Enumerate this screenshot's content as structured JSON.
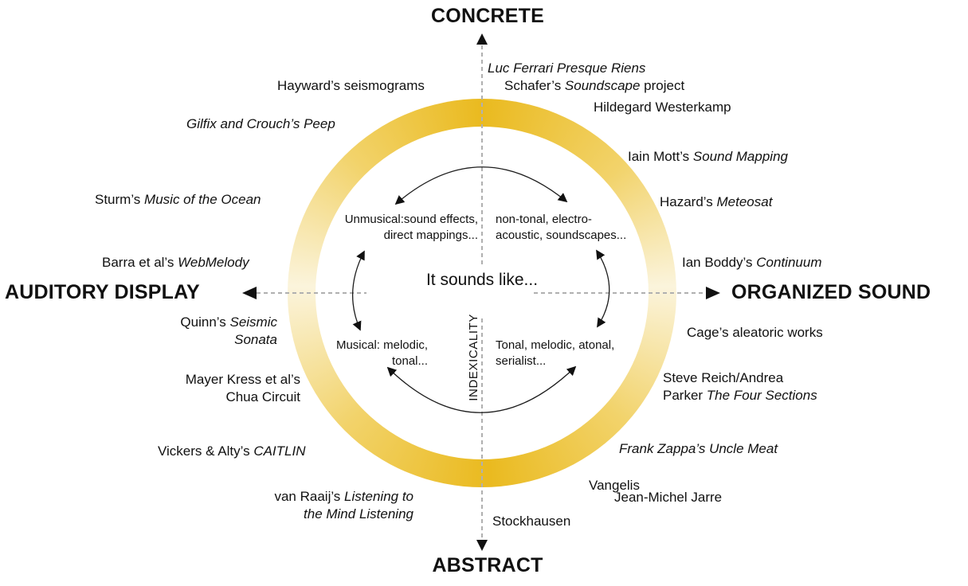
{
  "figure": {
    "axes": {
      "top": "CONCRETE",
      "bottom": "ABSTRACT",
      "left": "AUDITORY DISPLAY",
      "right": "ORGANIZED SOUND"
    },
    "center": {
      "line1": "It sounds",
      "line2": "like..."
    },
    "vertical_dimension_label": "INDEXICALITY"
  },
  "quadrants": {
    "top_left": {
      "lines": [
        [
          {
            "t": "Unmusical:sound effects,"
          }
        ],
        [
          {
            "t": "direct mappings..."
          }
        ]
      ]
    },
    "top_right": {
      "lines": [
        [
          {
            "t": "non-tonal, electro-"
          }
        ],
        [
          {
            "t": "acoustic, soundscapes..."
          }
        ]
      ]
    },
    "bottom_left": {
      "lines": [
        [
          {
            "t": "Musical: melodic,"
          }
        ],
        [
          {
            "t": "tonal..."
          }
        ]
      ]
    },
    "bottom_right": {
      "lines": [
        [
          {
            "t": "Tonal, melodic, atonal,"
          }
        ],
        [
          {
            "t": "serialist..."
          }
        ]
      ]
    }
  },
  "works": {
    "hayward": {
      "lines": [
        [
          {
            "t": "Hayward’s seismograms"
          }
        ]
      ]
    },
    "luc_ferrari": {
      "lines": [
        [
          {
            "t": "Luc Ferrari Presque Riens",
            "i": true
          }
        ]
      ]
    },
    "schafer": {
      "lines": [
        [
          {
            "t": "Schafer’s "
          },
          {
            "t": "Soundscape",
            "i": true
          },
          {
            "t": " project"
          }
        ]
      ]
    },
    "westerkamp": {
      "lines": [
        [
          {
            "t": "Hildegard Westerkamp"
          }
        ]
      ]
    },
    "gilfix": {
      "lines": [
        [
          {
            "t": "Gilfix and Crouch’s Peep",
            "i": true
          }
        ]
      ]
    },
    "mott": {
      "lines": [
        [
          {
            "t": "Iain Mott’s "
          },
          {
            "t": "Sound Mapping",
            "i": true
          }
        ]
      ]
    },
    "sturm": {
      "lines": [
        [
          {
            "t": "Sturm’s "
          },
          {
            "t": "Music of the Ocean",
            "i": true
          }
        ]
      ]
    },
    "hazard": {
      "lines": [
        [
          {
            "t": "Hazard’s "
          },
          {
            "t": "Meteosat",
            "i": true
          }
        ]
      ]
    },
    "barra": {
      "lines": [
        [
          {
            "t": "Barra et al’s "
          },
          {
            "t": "WebMelody",
            "i": true
          }
        ]
      ]
    },
    "boddy": {
      "lines": [
        [
          {
            "t": "Ian Boddy’s "
          },
          {
            "t": "Continuum",
            "i": true
          }
        ]
      ]
    },
    "quinn": {
      "lines": [
        [
          {
            "t": "Quinn’s "
          },
          {
            "t": "Seismic",
            "i": true
          }
        ],
        [
          {
            "t": "Sonata",
            "i": true
          }
        ]
      ]
    },
    "cage": {
      "lines": [
        [
          {
            "t": "Cage’s aleatoric works"
          }
        ]
      ]
    },
    "mayer_kress": {
      "lines": [
        [
          {
            "t": "Mayer Kress et al’s"
          }
        ],
        [
          {
            "t": "Chua Circuit"
          }
        ]
      ]
    },
    "reich_parker": {
      "lines": [
        [
          {
            "t": "Steve Reich/Andrea"
          }
        ],
        [
          {
            "t": "Parker "
          },
          {
            "t": "The Four Sections",
            "i": true
          }
        ]
      ]
    },
    "vickers_alty": {
      "lines": [
        [
          {
            "t": "Vickers & Alty’s "
          },
          {
            "t": "CAITLIN",
            "i": true
          }
        ]
      ]
    },
    "zappa": {
      "lines": [
        [
          {
            "t": "Frank Zappa’s Uncle Meat",
            "i": true
          }
        ]
      ]
    },
    "vangelis": {
      "lines": [
        [
          {
            "t": "Vangelis"
          }
        ]
      ]
    },
    "jarre": {
      "lines": [
        [
          {
            "t": "Jean-Michel Jarre"
          }
        ]
      ]
    },
    "van_raaij": {
      "lines": [
        [
          {
            "t": "van Raaij’s "
          },
          {
            "t": "Listening to",
            "i": true
          }
        ],
        [
          {
            "t": "the Mind Listening",
            "i": true
          }
        ]
      ]
    },
    "stockhausen": {
      "lines": [
        [
          {
            "t": "Stockhausen"
          }
        ]
      ]
    }
  },
  "colors": {
    "ring-gold": "#EABA1F",
    "ring-mid": "#F2D36B",
    "ring-pale": "#FBF4DC",
    "dash-gray": "#B0B0B0",
    "arrow-black": "#111111",
    "text-black": "#111111"
  }
}
